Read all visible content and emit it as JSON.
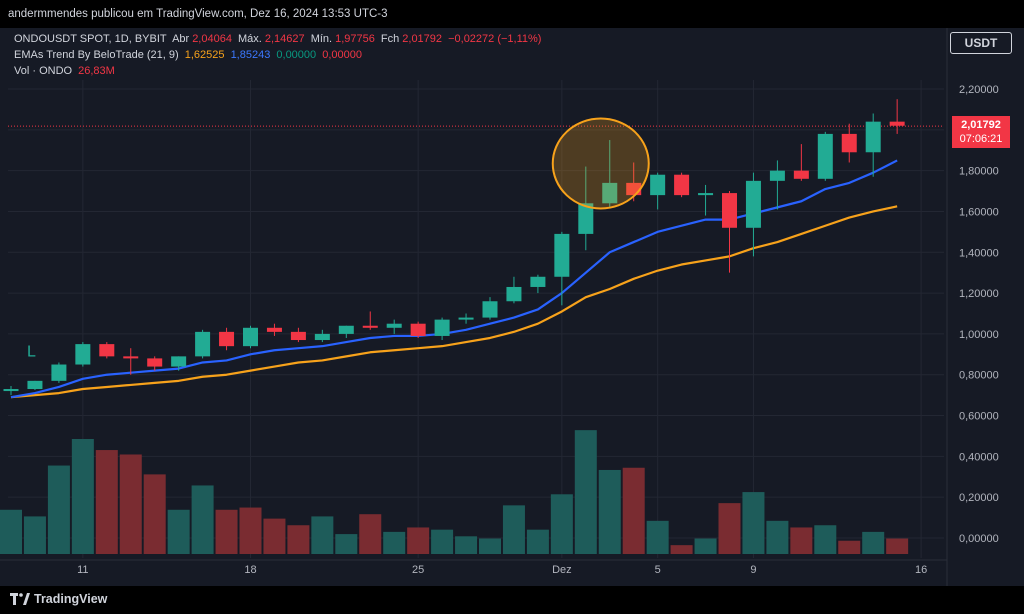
{
  "header": {
    "publish_text": "andermmendes publicou em TradingView.com, Dez 16, 2024 13:53 UTC-3"
  },
  "legend": {
    "symbol": "ONDOUSDT SPOT, 1D, BYBIT",
    "open_label": "Abr",
    "open_value": "2,04064",
    "high_label": "Máx.",
    "high_value": "2,14627",
    "low_label": "Mín.",
    "low_value": "1,97756",
    "close_label": "Fch",
    "close_value": "2,01792",
    "change_value": "−0,02272 (−1,11%)",
    "ema_title": "EMAs Trend By BeloTrade (21, 9)",
    "ema_values": [
      "1,62525",
      "1,85243",
      "0,00000",
      "0,00000"
    ],
    "vol_title": "Vol · ONDO",
    "vol_value": "26,83M"
  },
  "currency_button": "USDT",
  "price_tag": {
    "price": "2,01792",
    "countdown": "07:06:21"
  },
  "footer": {
    "brand": "TradingView"
  },
  "colors": {
    "up": "#22ab94",
    "down": "#f23645",
    "ema_fast": "#2962ff",
    "ema_slow": "#f7a21b",
    "vol_up": "#1e5c5a",
    "vol_down": "#7a2c31",
    "highlight_circle": "#f7a21b"
  },
  "chart_data": {
    "type": "candlestick",
    "y_axis_labels": [
      "2,20000",
      "2,00000",
      "1,80000",
      "1,60000",
      "1,40000",
      "1,20000",
      "1,00000",
      "0,80000",
      "0,60000",
      "0,40000",
      "0,20000",
      "0,00000"
    ],
    "x_axis_labels": [
      {
        "label": "11",
        "index": 3
      },
      {
        "label": "18",
        "index": 10
      },
      {
        "label": "25",
        "index": 17
      },
      {
        "label": "Dez",
        "index": 23
      },
      {
        "label": "5",
        "index": 27
      },
      {
        "label": "9",
        "index": 31
      },
      {
        "label": "16",
        "index": 38
      }
    ],
    "price_range": [
      0.0,
      2.2
    ],
    "candles": [
      {
        "o": 0.72,
        "h": 0.745,
        "l": 0.7,
        "c": 0.73
      },
      {
        "o": 0.73,
        "h": 0.77,
        "l": 0.725,
        "c": 0.77
      },
      {
        "o": 0.77,
        "h": 0.86,
        "l": 0.76,
        "c": 0.85
      },
      {
        "o": 0.85,
        "h": 0.96,
        "l": 0.84,
        "c": 0.95
      },
      {
        "o": 0.95,
        "h": 0.96,
        "l": 0.88,
        "c": 0.89
      },
      {
        "o": 0.89,
        "h": 0.93,
        "l": 0.8,
        "c": 0.88
      },
      {
        "o": 0.88,
        "h": 0.89,
        "l": 0.82,
        "c": 0.84
      },
      {
        "o": 0.84,
        "h": 0.89,
        "l": 0.82,
        "c": 0.89
      },
      {
        "o": 0.89,
        "h": 1.02,
        "l": 0.88,
        "c": 1.01
      },
      {
        "o": 1.01,
        "h": 1.03,
        "l": 0.92,
        "c": 0.94
      },
      {
        "o": 0.94,
        "h": 1.04,
        "l": 0.93,
        "c": 1.03
      },
      {
        "o": 1.03,
        "h": 1.05,
        "l": 0.99,
        "c": 1.01
      },
      {
        "o": 1.01,
        "h": 1.03,
        "l": 0.96,
        "c": 0.97
      },
      {
        "o": 0.97,
        "h": 1.02,
        "l": 0.96,
        "c": 1.0
      },
      {
        "o": 1.0,
        "h": 1.04,
        "l": 0.98,
        "c": 1.04
      },
      {
        "o": 1.04,
        "h": 1.11,
        "l": 1.02,
        "c": 1.03
      },
      {
        "o": 1.03,
        "h": 1.07,
        "l": 1.0,
        "c": 1.05
      },
      {
        "o": 1.05,
        "h": 1.06,
        "l": 0.98,
        "c": 0.99
      },
      {
        "o": 0.99,
        "h": 1.08,
        "l": 0.97,
        "c": 1.07
      },
      {
        "o": 1.07,
        "h": 1.1,
        "l": 1.05,
        "c": 1.08
      },
      {
        "o": 1.08,
        "h": 1.18,
        "l": 1.07,
        "c": 1.16
      },
      {
        "o": 1.16,
        "h": 1.28,
        "l": 1.15,
        "c": 1.23
      },
      {
        "o": 1.23,
        "h": 1.29,
        "l": 1.2,
        "c": 1.28
      },
      {
        "o": 1.28,
        "h": 1.5,
        "l": 1.14,
        "c": 1.49
      },
      {
        "o": 1.49,
        "h": 1.82,
        "l": 1.41,
        "c": 1.64
      },
      {
        "o": 1.64,
        "h": 1.95,
        "l": 1.62,
        "c": 1.74
      },
      {
        "o": 1.74,
        "h": 1.84,
        "l": 1.65,
        "c": 1.68
      },
      {
        "o": 1.68,
        "h": 1.79,
        "l": 1.61,
        "c": 1.78
      },
      {
        "o": 1.78,
        "h": 1.79,
        "l": 1.67,
        "c": 1.68
      },
      {
        "o": 1.68,
        "h": 1.73,
        "l": 1.58,
        "c": 1.69
      },
      {
        "o": 1.69,
        "h": 1.7,
        "l": 1.3,
        "c": 1.52
      },
      {
        "o": 1.52,
        "h": 1.79,
        "l": 1.38,
        "c": 1.75
      },
      {
        "o": 1.75,
        "h": 1.85,
        "l": 1.61,
        "c": 1.8
      },
      {
        "o": 1.8,
        "h": 1.93,
        "l": 1.75,
        "c": 1.76
      },
      {
        "o": 1.76,
        "h": 1.99,
        "l": 1.75,
        "c": 1.98
      },
      {
        "o": 1.98,
        "h": 2.03,
        "l": 1.84,
        "c": 1.89
      },
      {
        "o": 1.89,
        "h": 2.08,
        "l": 1.77,
        "c": 2.04
      },
      {
        "o": 2.04,
        "h": 2.15,
        "l": 1.98,
        "c": 2.02
      }
    ],
    "ema_fast": [
      0.69,
      0.71,
      0.74,
      0.78,
      0.8,
      0.81,
      0.82,
      0.83,
      0.86,
      0.87,
      0.9,
      0.92,
      0.93,
      0.94,
      0.96,
      0.98,
      0.99,
      0.99,
      1.0,
      1.02,
      1.05,
      1.08,
      1.12,
      1.2,
      1.3,
      1.4,
      1.45,
      1.5,
      1.53,
      1.56,
      1.56,
      1.59,
      1.62,
      1.65,
      1.71,
      1.74,
      1.79,
      1.85
    ],
    "ema_slow": [
      0.69,
      0.7,
      0.71,
      0.73,
      0.74,
      0.75,
      0.76,
      0.77,
      0.79,
      0.8,
      0.82,
      0.84,
      0.86,
      0.87,
      0.89,
      0.91,
      0.92,
      0.93,
      0.94,
      0.96,
      0.98,
      1.01,
      1.05,
      1.11,
      1.18,
      1.22,
      1.27,
      1.31,
      1.34,
      1.36,
      1.38,
      1.42,
      1.45,
      1.49,
      1.53,
      1.57,
      1.6,
      1.625
    ],
    "volume_axis_max_label": "0,60000",
    "volumes": [
      0.2,
      0.17,
      0.4,
      0.52,
      0.47,
      0.45,
      0.36,
      0.2,
      0.31,
      0.2,
      0.21,
      0.16,
      0.13,
      0.17,
      0.09,
      0.18,
      0.1,
      0.12,
      0.11,
      0.08,
      0.07,
      0.22,
      0.11,
      0.27,
      0.56,
      0.38,
      0.39,
      0.15,
      0.04,
      0.07,
      0.23,
      0.28,
      0.15,
      0.12,
      0.13,
      0.06,
      0.1,
      0.07
    ],
    "volume_up": [
      true,
      true,
      true,
      true,
      false,
      false,
      false,
      true,
      true,
      false,
      false,
      false,
      false,
      true,
      true,
      false,
      true,
      false,
      true,
      true,
      true,
      true,
      true,
      true,
      true,
      true,
      false,
      true,
      false,
      true,
      false,
      true,
      true,
      false,
      true,
      false,
      true,
      false
    ],
    "highlight_candle_index": 25,
    "last_price_line": 2.01792
  }
}
